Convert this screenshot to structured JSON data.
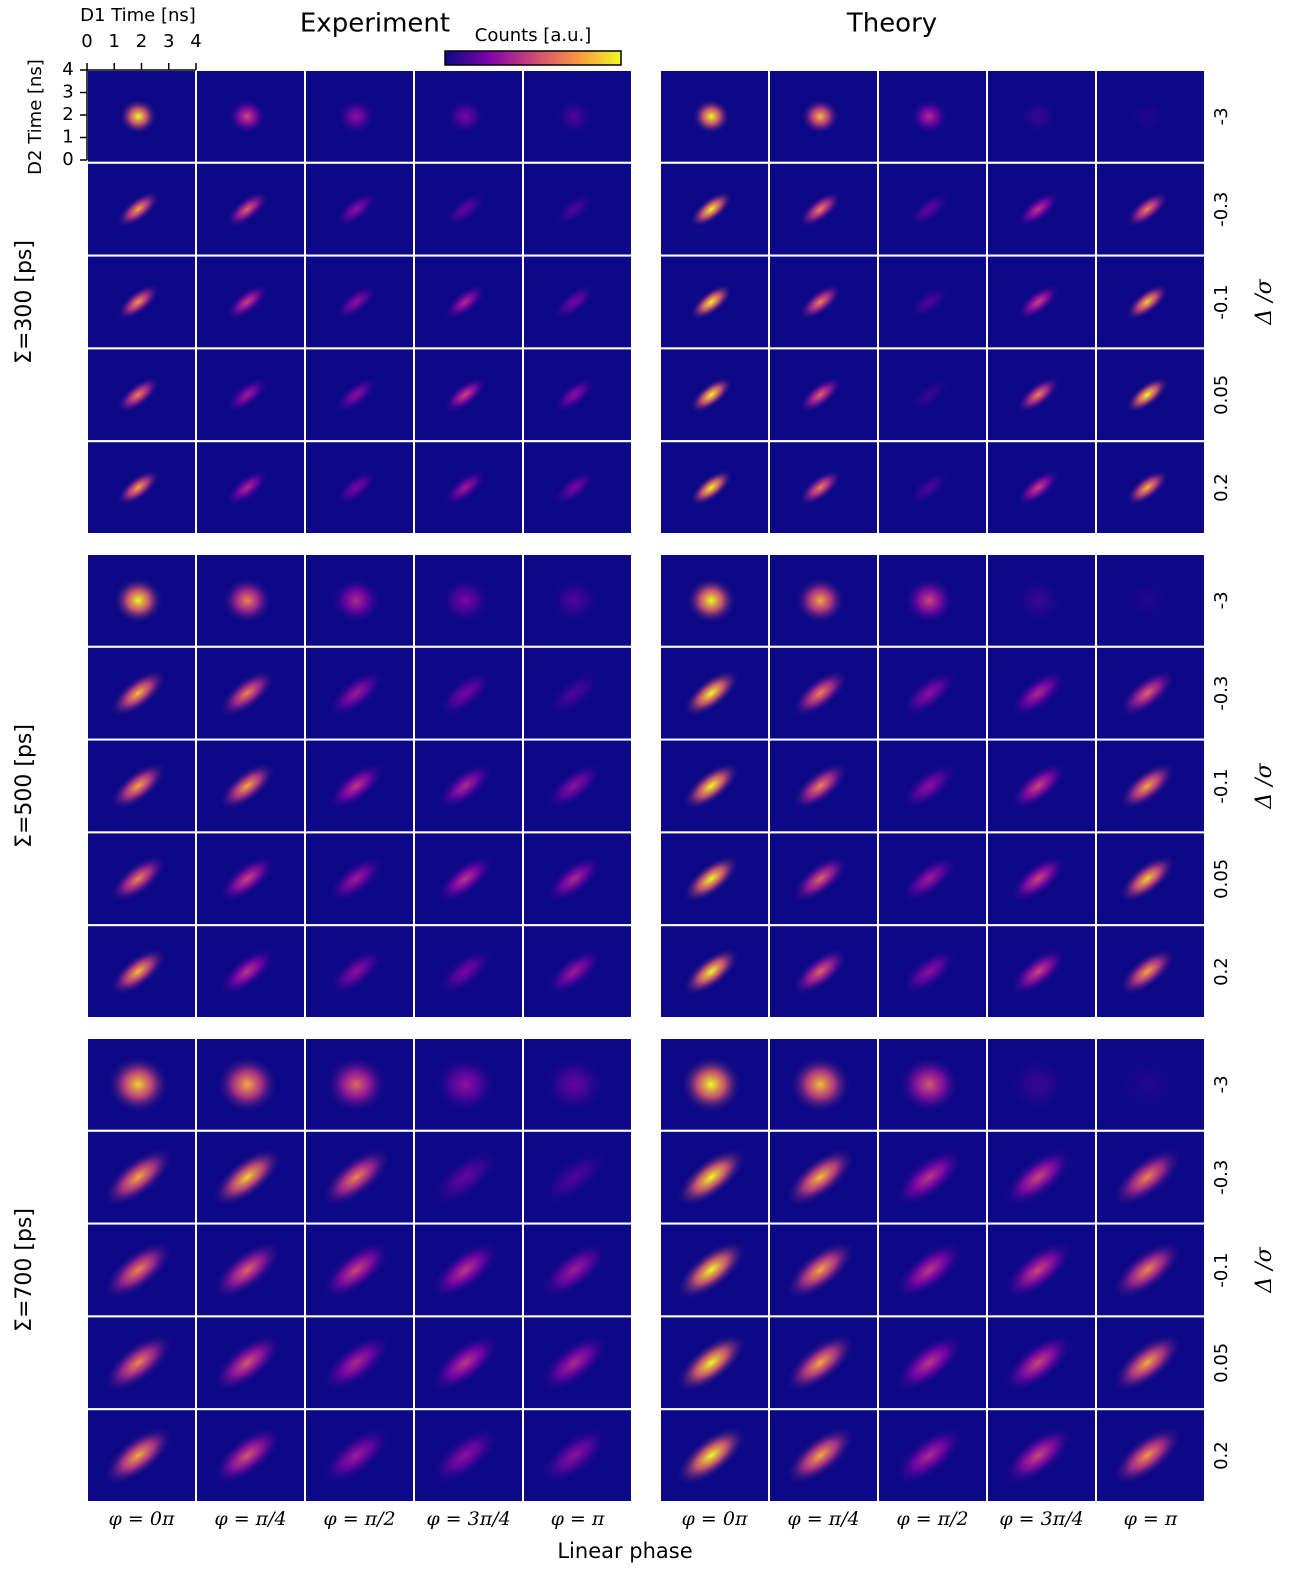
{
  "chart_data": {
    "type": "heatmap",
    "xlabel": "D1 Time [ns]",
    "xlim": [
      0,
      4
    ],
    "xticks": [
      0,
      1,
      2,
      3,
      4
    ],
    "ylabel": "D2 Time [ns]",
    "ylim": [
      0,
      4
    ],
    "yticks": [
      0,
      1,
      2,
      3,
      4
    ],
    "colorbar_label": "Counts [a.u.]",
    "colormap": [
      "#0d0887",
      "#7e03a8",
      "#cc4778",
      "#f89540",
      "#f0f921"
    ],
    "groups": [
      "Σ=300 [ps]",
      "Σ=500 [ps]",
      "Σ=700 [ps]"
    ],
    "rows_label": "Δ /σ",
    "rows": [
      -3,
      -0.3,
      -0.1,
      0.05,
      0.2
    ],
    "columns_label": "Linear phase",
    "panels": [
      {
        "name": "Experiment",
        "columns": [
          "φ = 0π",
          "φ = π/4",
          "φ = π/2",
          "φ = 3π/4",
          "φ = π"
        ],
        "values": [
          [
            [
              1.0,
              0.5,
              0.3,
              0.25,
              0.15
            ],
            [
              0.8,
              0.6,
              0.3,
              0.2,
              0.15
            ],
            [
              0.75,
              0.5,
              0.3,
              0.4,
              0.25
            ],
            [
              0.7,
              0.35,
              0.3,
              0.5,
              0.3
            ],
            [
              0.8,
              0.4,
              0.25,
              0.35,
              0.25
            ]
          ],
          [
            [
              1.0,
              0.7,
              0.4,
              0.25,
              0.15
            ],
            [
              0.85,
              0.7,
              0.35,
              0.25,
              0.15
            ],
            [
              0.8,
              0.8,
              0.45,
              0.4,
              0.3
            ],
            [
              0.7,
              0.5,
              0.35,
              0.45,
              0.4
            ],
            [
              0.85,
              0.45,
              0.3,
              0.25,
              0.35
            ]
          ],
          [
            [
              0.9,
              0.8,
              0.6,
              0.3,
              0.2
            ],
            [
              0.8,
              0.9,
              0.7,
              0.2,
              0.15
            ],
            [
              0.7,
              0.6,
              0.5,
              0.45,
              0.35
            ],
            [
              0.7,
              0.55,
              0.4,
              0.45,
              0.4
            ],
            [
              0.8,
              0.55,
              0.35,
              0.3,
              0.3
            ]
          ]
        ]
      },
      {
        "name": "Theory",
        "columns": [
          "φ = 0π",
          "φ = π/4",
          "φ = π/2",
          "φ = 3π/4",
          "φ = π"
        ],
        "values": [
          [
            [
              1.0,
              0.85,
              0.4,
              0.1,
              0.05
            ],
            [
              1.0,
              0.7,
              0.2,
              0.45,
              0.7
            ],
            [
              1.0,
              0.7,
              0.15,
              0.5,
              0.9
            ],
            [
              1.0,
              0.6,
              0.1,
              0.7,
              1.0
            ],
            [
              1.0,
              0.7,
              0.15,
              0.5,
              0.85
            ]
          ],
          [
            [
              1.0,
              0.8,
              0.5,
              0.1,
              0.05
            ],
            [
              1.0,
              0.7,
              0.3,
              0.4,
              0.6
            ],
            [
              1.0,
              0.7,
              0.3,
              0.5,
              0.8
            ],
            [
              1.0,
              0.6,
              0.35,
              0.5,
              0.9
            ],
            [
              1.0,
              0.6,
              0.3,
              0.5,
              0.8
            ]
          ],
          [
            [
              1.0,
              0.85,
              0.55,
              0.1,
              0.05
            ],
            [
              1.0,
              0.85,
              0.45,
              0.5,
              0.7
            ],
            [
              1.0,
              0.8,
              0.45,
              0.5,
              0.7
            ],
            [
              1.0,
              0.8,
              0.45,
              0.5,
              0.8
            ],
            [
              1.0,
              0.8,
              0.4,
              0.5,
              0.75
            ]
          ]
        ]
      }
    ]
  }
}
